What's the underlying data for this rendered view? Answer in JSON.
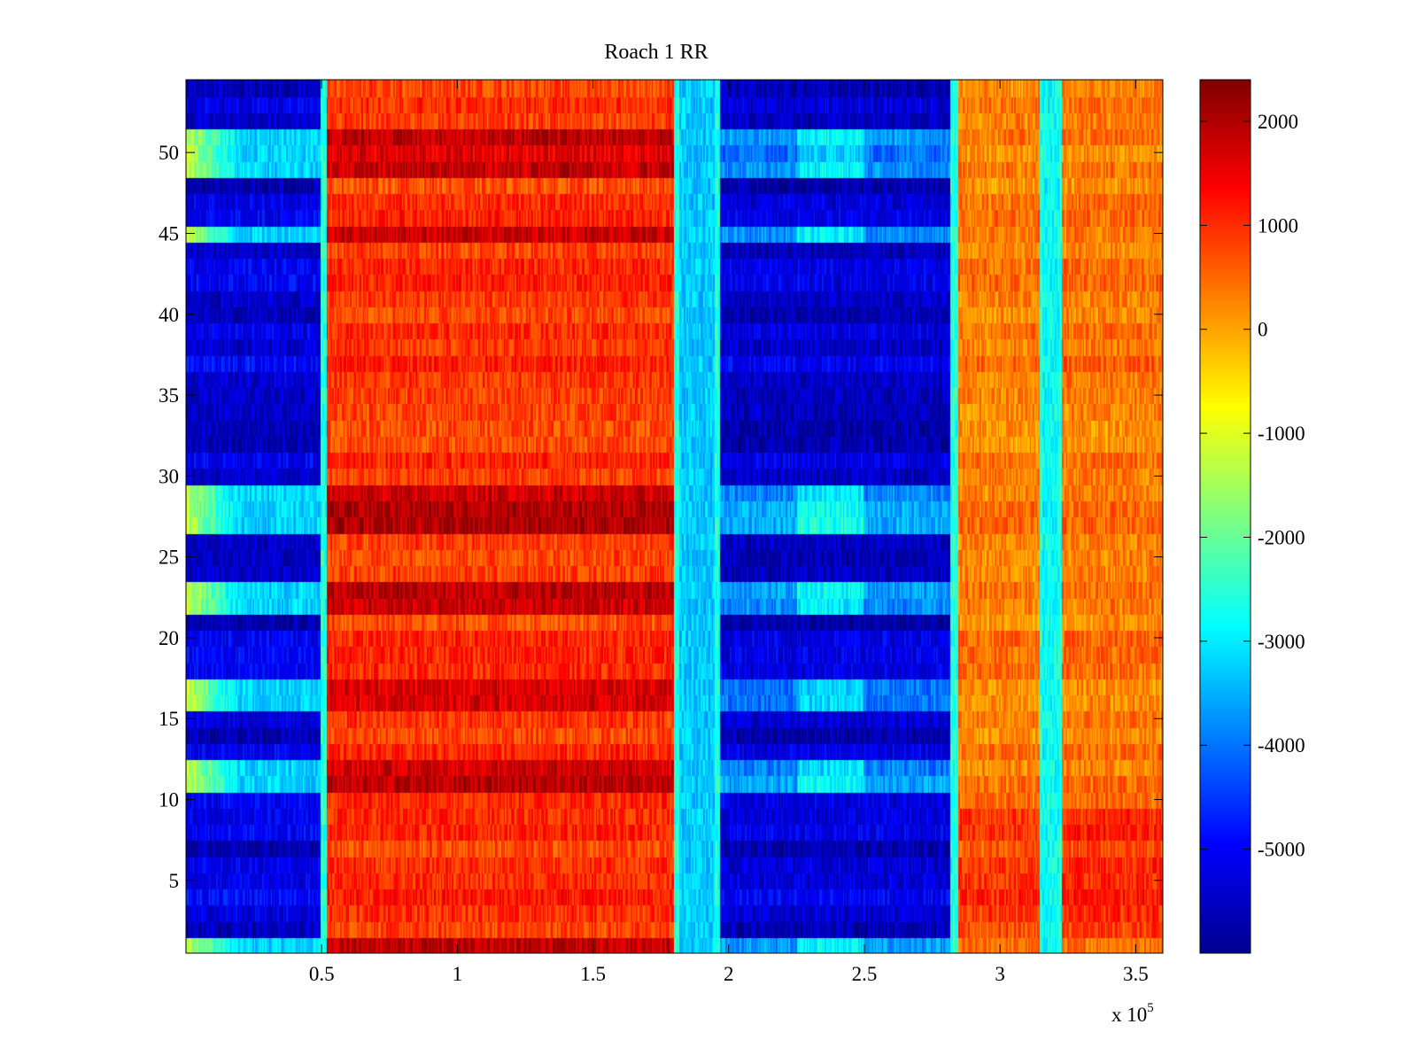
{
  "chart_data": {
    "type": "heatmap",
    "title": "Roach 1 RR",
    "xlabel": "",
    "ylabel": "",
    "x_range": [
      0,
      360000
    ],
    "y_range": [
      0.5,
      54.5
    ],
    "x_ticks": [
      50000,
      100000,
      150000,
      200000,
      250000,
      300000,
      350000
    ],
    "x_tick_labels": [
      "0.5",
      "1",
      "1.5",
      "2",
      "2.5",
      "3",
      "3.5"
    ],
    "x_exponent_label": "x 10",
    "x_exponent_power": "5",
    "y_ticks": [
      5,
      10,
      15,
      20,
      25,
      30,
      35,
      40,
      45,
      50
    ],
    "y_tick_labels": [
      "5",
      "10",
      "15",
      "20",
      "25",
      "30",
      "35",
      "40",
      "45",
      "50"
    ],
    "rows": 54,
    "colormap": "jet",
    "colorbar": {
      "range": [
        -6000,
        2400
      ],
      "ticks": [
        2000,
        1000,
        0,
        -1000,
        -2000,
        -3000,
        -4000,
        -5000
      ],
      "tick_labels": [
        "2000",
        "1000",
        "0",
        "-1000",
        "-2000",
        "-3000",
        "-4000",
        "-5000"
      ]
    },
    "regions": [
      {
        "x_start": 0,
        "x_end": 50000,
        "description": "mostly low",
        "mean": -5000
      },
      {
        "x_start": 52000,
        "x_end": 180000,
        "description": "high",
        "mean": 1300
      },
      {
        "x_start": 182000,
        "x_end": 195000,
        "description": "transition",
        "mean": -3300
      },
      {
        "x_start": 197000,
        "x_end": 282000,
        "description": "low",
        "mean": -5100
      },
      {
        "x_start": 285000,
        "x_end": 315000,
        "description": "medium-high",
        "mean": 500
      },
      {
        "x_start": 316000,
        "x_end": 322000,
        "description": "cyan band",
        "mean": -2800
      },
      {
        "x_start": 323000,
        "x_end": 360000,
        "description": "medium-high",
        "mean": 500
      }
    ],
    "high_rows_left": [
      1,
      11,
      12,
      16,
      17,
      22,
      23,
      27,
      28,
      29,
      45,
      49,
      50,
      51
    ]
  }
}
